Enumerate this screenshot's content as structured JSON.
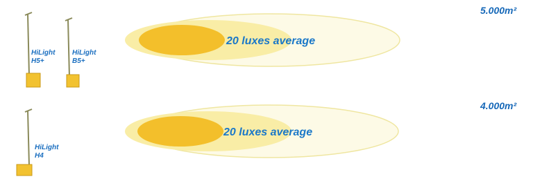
{
  "rows": [
    {
      "area": "5.000m²",
      "lux_label": "20 luxes average",
      "towers": [
        {
          "brand": "HiLight",
          "model": "H5+"
        },
        {
          "brand": "HiLight",
          "model": "B5+"
        }
      ]
    },
    {
      "area": "4.000m²",
      "lux_label": "20 luxes average",
      "towers": [
        {
          "brand": "HiLight",
          "model": "H4"
        }
      ]
    }
  ]
}
